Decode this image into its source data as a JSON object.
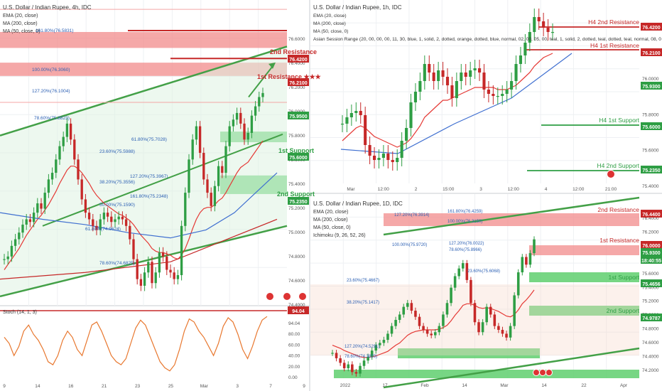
{
  "colors": {
    "up": "#2e9e44",
    "down": "#c62828",
    "ema20": "#e53935",
    "ma200": "#c62828",
    "ma50": "#3f6fd0",
    "resistance_zone": "#f28b8b",
    "support_zone": "#5fcf6f",
    "channel": "#43a047",
    "grid": "#eef0f3",
    "text": "#333333",
    "axis_text": "#555555",
    "stoch": "#e8772e"
  },
  "panels": {
    "left": {
      "title": "U.S. Dollar / Indian Rupee, 4h, IDC",
      "legend": [
        "EMA (20, close)",
        "MA (200, close)",
        "MA (50, close, 0)"
      ],
      "axis_prices": [
        "76.6000",
        "76.4000",
        "76.2000",
        "76.0000",
        "75.8000",
        "75.6000",
        "75.4000",
        "75.2000",
        "75.0000",
        "74.8000",
        "74.6000",
        "74.4000"
      ],
      "time_labels": [
        "9",
        "14",
        "16",
        "21",
        "23",
        "25",
        "Mar",
        "3",
        "7",
        "9"
      ],
      "badge_prices": [
        "76.4200",
        "76.2100",
        "75.9500",
        "75.6000",
        "75.2350"
      ],
      "stoch": {
        "title": "Stoch (14, 1, 3)",
        "value": "94.04",
        "axis": [
          "94.04",
          "80.00",
          "60.00",
          "40.00",
          "20.00",
          "0.00"
        ]
      },
      "annotations": {
        "res2": "2nd Resistance",
        "res1": "1st Resistance",
        "sup1": "1st Support",
        "sup2": "2nd Support",
        "fib_161_top": "161.80%(76.5831)",
        "fib_100": "100.00%(76.3060)",
        "fib_127": "127.20%(76.1004)",
        "fib_786_top": "78.60%(75.8823)",
        "fib_618": "61.80%(75.7028)",
        "fib_236": "23.60%(75.5988)",
        "fib_1272": "127.20%(75.3967)",
        "fib_382": "38.20%(75.3556)",
        "fib_1618": "161.80%(75.2348)",
        "fib_50": "50.00%(75.1590)",
        "fib_618b": "61.80%(74.9624)",
        "fib_786": "78.60%(74.6825)"
      }
    },
    "right_top": {
      "title": "U.S. Dollar / Indian Rupee, 1h, IDC",
      "legend": [
        "EMA (20, close)",
        "MA (200, close)",
        "MA (50, close, 0)",
        "Asian Session Range (20, 00, 00, 00, 11, 30, blue, 1, solid, 2, dotted, orange, dotted, blue, normal, 02, 00, 05, 00, teal, 1, solid, 2, dotted, teal, dotted, teal, normal, 08, 0"
      ],
      "axis_prices": [
        "76.0000",
        "75.8000",
        "75.6000",
        "75.4000"
      ],
      "time_labels": [
        "Mar",
        "12:00",
        "2",
        "15:00",
        "3",
        "12:00",
        "4",
        "12:00",
        "21:00"
      ],
      "badge_prices": [
        "76.4200",
        "76.2100",
        "75.9300",
        "75.6000",
        "75.2350"
      ],
      "annotations": {
        "h4_res2": "H4 2nd Resistance",
        "h4_res1": "H4 1st Resistance",
        "h4_sup1": "H4 1st Support",
        "h4_sup2": "H4 2nd Support"
      }
    },
    "right_bottom": {
      "title": "U.S. Dollar / Indian Rupee, 1D, IDC",
      "legend": [
        "EMA (20, close)",
        "MA (200, close)",
        "MA (50, close, 0)",
        "Ichimoku (9, 26, 52, 26)"
      ],
      "axis_prices": [
        "76.4000",
        "76.2000",
        "76.0000",
        "75.8000",
        "75.6000",
        "75.4000",
        "75.2000",
        "75.0000",
        "74.8000",
        "74.6000",
        "74.4000",
        "74.2000"
      ],
      "time_labels": [
        "2022",
        "17",
        "Feb",
        "14",
        "Mar",
        "14",
        "22",
        "Apr"
      ],
      "badge_prices": [
        "76.4400",
        "76.0000",
        "75.9300",
        "18:40:55",
        "75.4656",
        "74.9787"
      ],
      "annotations": {
        "res2": "2nd Resistance",
        "res1": "1st Resistance",
        "sup1": "1st Support",
        "sup2": "2nd Support",
        "fib_1618": "161.80%(76.4259)",
        "fib_1272a": "127.20%(76.3914)",
        "fib_100a": "100.00%(76.3150)",
        "fib_127b": "127.20%(76.0022)",
        "fib_100b": "100.00%(75.9720)",
        "fib_786": "78.60%(75.8966)",
        "fib_236a": "23.60%(75.6068)",
        "fib_236b": "23.60%(75.4667)",
        "fib_382": "38.20%(75.1417)",
        "fib_1272c": "127.20%(74.5291)",
        "fib_786b": "78.60%(74.3829)"
      }
    }
  },
  "chart_data": [
    {
      "type": "line",
      "title": "U.S. Dollar / Indian Rupee, 4h, IDC",
      "ylim": [
        74.35,
        76.65
      ],
      "levels": {
        "2nd Resistance": 76.42,
        "1st Resistance": 76.21,
        "1st Support": 75.6,
        "2nd Support": 75.235
      },
      "series": [
        {
          "name": "close",
          "values": [
            74.7,
            74.72,
            74.8,
            74.85,
            74.9,
            74.96,
            75.0,
            74.98,
            75.05,
            75.12,
            75.08,
            75.2,
            75.3,
            75.35,
            75.45,
            75.55,
            75.62,
            75.72,
            75.6,
            75.45,
            75.3,
            75.15,
            75.05,
            75.0,
            74.95,
            74.92,
            75.0,
            75.05,
            75.02,
            74.98,
            75.0,
            75.02,
            75.0,
            74.95,
            74.85,
            74.7,
            74.55,
            74.5,
            74.6,
            74.68,
            74.52,
            74.6,
            74.75,
            74.72,
            74.62,
            74.6,
            74.55,
            74.58,
            74.95,
            75.2,
            75.45,
            75.6,
            75.7,
            75.5,
            75.3,
            75.2,
            75.1,
            75.25,
            75.4,
            75.35,
            75.55,
            75.7,
            75.75,
            75.8,
            75.72,
            75.6,
            75.65,
            75.78,
            75.85,
            75.92,
            75.95
          ]
        },
        {
          "name": "EMA (20, close)",
          "values": [
            74.62,
            74.66,
            74.7,
            74.74,
            74.78,
            74.83,
            74.88,
            74.92,
            74.96,
            75.0,
            75.03,
            75.07,
            75.11,
            75.16,
            75.21,
            75.27,
            75.32,
            75.37,
            75.4,
            75.4,
            75.38,
            75.35,
            75.31,
            75.27,
            75.22,
            75.18,
            75.15,
            75.12,
            75.1,
            75.08,
            75.06,
            75.04,
            75.03,
            75.01,
            74.99,
            74.96,
            74.92,
            74.88,
            74.85,
            74.82,
            74.78,
            74.76,
            74.75,
            74.75,
            74.74,
            74.73,
            74.71,
            74.7,
            74.73,
            74.78,
            74.85,
            74.93,
            75.0,
            75.05,
            75.08,
            75.09,
            75.09,
            75.11,
            75.14,
            75.16,
            75.2,
            75.25,
            75.3,
            75.35,
            75.39,
            75.41,
            75.43,
            75.47,
            75.51,
            75.55,
            75.59
          ]
        }
      ]
    },
    {
      "type": "line",
      "title": "U.S. Dollar / Indian Rupee, 1h, IDC",
      "ylim": [
        75.22,
        76.08
      ],
      "levels": {
        "H4 2nd Resistance": 76.42,
        "H4 1st Resistance": 76.21,
        "H4 1st Support": 75.6,
        "H4 2nd Support": 75.235
      },
      "series": [
        {
          "name": "close",
          "values": [
            75.5,
            75.53,
            75.55,
            75.56,
            75.54,
            75.4,
            75.35,
            75.33,
            75.34,
            75.36,
            75.33,
            75.32,
            75.34,
            75.42,
            75.48,
            75.6,
            75.65,
            75.7,
            75.78,
            75.74,
            75.7,
            75.75,
            75.72,
            75.68,
            75.62,
            75.7,
            75.74,
            75.72,
            75.75,
            75.76,
            75.74,
            75.66,
            75.64,
            75.63,
            75.63,
            75.64,
            75.66,
            75.7,
            75.78,
            75.82,
            75.88,
            75.93,
            76.0,
            75.98,
            75.95,
            75.93,
            75.93
          ]
        },
        {
          "name": "EMA (20, close)",
          "values": [
            75.42,
            75.44,
            75.46,
            75.48,
            75.49,
            75.48,
            75.46,
            75.44,
            75.43,
            75.42,
            75.41,
            75.4,
            75.39,
            75.4,
            75.41,
            75.43,
            75.46,
            75.49,
            75.53,
            75.55,
            75.57,
            75.59,
            75.61,
            75.61,
            75.62,
            75.63,
            75.64,
            75.65,
            75.66,
            75.67,
            75.67,
            75.67,
            75.67,
            75.67,
            75.66,
            75.66,
            75.66,
            75.67,
            75.68,
            75.7,
            75.72,
            75.74,
            75.77,
            75.79,
            75.81,
            75.82,
            75.83
          ]
        }
      ]
    },
    {
      "type": "line",
      "title": "U.S. Dollar / Indian Rupee, 1D, IDC",
      "ylim": [
        74.12,
        76.52
      ],
      "levels": {
        "2nd Resistance": 76.44,
        "1st Resistance": 76.0,
        "1st Support": 75.4656,
        "2nd Support": 74.9787
      },
      "series": [
        {
          "name": "close",
          "values": [
            74.45,
            74.38,
            74.32,
            74.25,
            74.3,
            74.2,
            74.18,
            74.28,
            74.35,
            74.4,
            74.48,
            74.55,
            74.58,
            74.62,
            74.7,
            74.8,
            74.88,
            74.95,
            75.05,
            75.1,
            75.0,
            74.92,
            74.8,
            74.75,
            74.7,
            74.68,
            74.72,
            74.8,
            74.95,
            75.1,
            75.3,
            75.45,
            75.55,
            75.62,
            75.4,
            75.1,
            74.85,
            74.72,
            74.85,
            75.05,
            74.95,
            74.8,
            74.75,
            74.7,
            74.65,
            74.8,
            75.2,
            75.5,
            75.7,
            75.6,
            75.75,
            75.93
          ]
        },
        {
          "name": "EMA (20, close)",
          "values": [
            74.55,
            74.53,
            74.51,
            74.48,
            74.46,
            74.44,
            74.42,
            74.4,
            74.39,
            74.39,
            74.4,
            74.41,
            74.43,
            74.45,
            74.47,
            74.51,
            74.55,
            74.58,
            74.63,
            74.68,
            74.71,
            74.73,
            74.74,
            74.75,
            74.75,
            74.75,
            74.75,
            74.76,
            74.78,
            74.81,
            74.87,
            74.94,
            75.0,
            75.07,
            75.09,
            75.09,
            75.07,
            75.04,
            75.03,
            75.04,
            75.03,
            75.01,
            74.99,
            74.96,
            74.93,
            74.92,
            74.95,
            75.01,
            75.09,
            75.14,
            75.2,
            75.27
          ]
        }
      ]
    }
  ]
}
